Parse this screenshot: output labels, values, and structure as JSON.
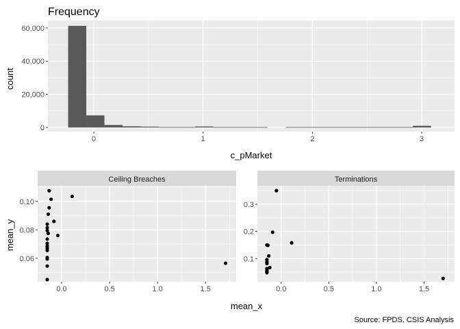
{
  "chart_data": [
    {
      "type": "bar",
      "title": "Frequency",
      "xlabel": "c_pMarket",
      "ylabel": "count",
      "xlim": [
        -0.42,
        3.3
      ],
      "ylim": [
        -2500,
        64500
      ],
      "x_ticks": [
        {
          "value": 0,
          "label": "0"
        },
        {
          "value": 1,
          "label": "1"
        },
        {
          "value": 2,
          "label": "2"
        },
        {
          "value": 3,
          "label": "3"
        }
      ],
      "y_ticks": [
        {
          "value": 0,
          "label": "0"
        },
        {
          "value": 20000,
          "label": "20,000"
        },
        {
          "value": 40000,
          "label": "40,000"
        },
        {
          "value": 60000,
          "label": "60,000"
        }
      ],
      "bin_width": 0.166,
      "bins": [
        {
          "x0": -0.235,
          "count": 61300
        },
        {
          "x0": -0.069,
          "count": 7300
        },
        {
          "x0": 0.097,
          "count": 1500
        },
        {
          "x0": 0.263,
          "count": 700
        },
        {
          "x0": 0.429,
          "count": 500
        },
        {
          "x0": 0.595,
          "count": 200
        },
        {
          "x0": 0.761,
          "count": 200
        },
        {
          "x0": 0.927,
          "count": 600
        },
        {
          "x0": 1.093,
          "count": 200
        },
        {
          "x0": 1.259,
          "count": 200
        },
        {
          "x0": 1.425,
          "count": 200
        },
        {
          "x0": 1.757,
          "count": 200
        },
        {
          "x0": 1.923,
          "count": 200
        },
        {
          "x0": 2.089,
          "count": 200
        },
        {
          "x0": 2.255,
          "count": 200
        },
        {
          "x0": 2.421,
          "count": 200
        },
        {
          "x0": 2.587,
          "count": 200
        },
        {
          "x0": 2.753,
          "count": 200
        },
        {
          "x0": 2.919,
          "count": 1000
        }
      ],
      "grid": true
    },
    {
      "type": "scatter",
      "panel": "Ceiling Breaches",
      "xlabel": "mean_x",
      "ylabel": "mean_y",
      "xlim": [
        -0.25,
        1.82
      ],
      "ylim": [
        0.0435,
        0.111
      ],
      "x_ticks": [
        {
          "value": 0,
          "label": "0.0"
        },
        {
          "value": 0.5,
          "label": "0.5"
        },
        {
          "value": 1.0,
          "label": "1.0"
        },
        {
          "value": 1.5,
          "label": "1.5"
        }
      ],
      "y_ticks": [
        {
          "value": 0.06,
          "label": "0.06"
        },
        {
          "value": 0.08,
          "label": "0.08"
        },
        {
          "value": 0.1,
          "label": "0.10"
        }
      ],
      "points": [
        {
          "x": -0.13,
          "y": 0.1075
        },
        {
          "x": -0.11,
          "y": 0.1015
        },
        {
          "x": 0.11,
          "y": 0.1035
        },
        {
          "x": -0.13,
          "y": 0.0955
        },
        {
          "x": -0.14,
          "y": 0.091
        },
        {
          "x": -0.08,
          "y": 0.086
        },
        {
          "x": -0.15,
          "y": 0.084
        },
        {
          "x": -0.15,
          "y": 0.0815
        },
        {
          "x": -0.15,
          "y": 0.0795
        },
        {
          "x": -0.14,
          "y": 0.0775
        },
        {
          "x": -0.04,
          "y": 0.076
        },
        {
          "x": -0.15,
          "y": 0.0735
        },
        {
          "x": -0.15,
          "y": 0.0705
        },
        {
          "x": -0.15,
          "y": 0.0685
        },
        {
          "x": -0.15,
          "y": 0.067
        },
        {
          "x": -0.15,
          "y": 0.0655
        },
        {
          "x": -0.15,
          "y": 0.0605
        },
        {
          "x": -0.15,
          "y": 0.0595
        },
        {
          "x": -0.15,
          "y": 0.0545
        },
        {
          "x": 1.71,
          "y": 0.0565
        },
        {
          "x": -0.15,
          "y": 0.045
        }
      ],
      "grid": true
    },
    {
      "type": "scatter",
      "panel": "Terminations",
      "xlabel": "mean_x",
      "ylabel": "mean_y",
      "xlim": [
        -0.25,
        1.82
      ],
      "ylim": [
        0.015,
        0.368
      ],
      "x_ticks": [
        {
          "value": 0,
          "label": "0.0"
        },
        {
          "value": 0.5,
          "label": "0.5"
        },
        {
          "value": 1.0,
          "label": "1.0"
        },
        {
          "value": 1.5,
          "label": "1.5"
        }
      ],
      "y_ticks": [
        {
          "value": 0.1,
          "label": "0.1"
        },
        {
          "value": 0.2,
          "label": "0.2"
        },
        {
          "value": 0.3,
          "label": "0.3"
        }
      ],
      "points": [
        {
          "x": -0.05,
          "y": 0.35
        },
        {
          "x": -0.09,
          "y": 0.197
        },
        {
          "x": 0.11,
          "y": 0.158
        },
        {
          "x": -0.15,
          "y": 0.15
        },
        {
          "x": -0.14,
          "y": 0.149
        },
        {
          "x": -0.13,
          "y": 0.11
        },
        {
          "x": -0.15,
          "y": 0.096
        },
        {
          "x": -0.15,
          "y": 0.088
        },
        {
          "x": -0.15,
          "y": 0.082
        },
        {
          "x": -0.12,
          "y": 0.067
        },
        {
          "x": -0.15,
          "y": 0.063
        },
        {
          "x": -0.15,
          "y": 0.057
        },
        {
          "x": -0.15,
          "y": 0.052
        },
        {
          "x": -0.15,
          "y": 0.048
        },
        {
          "x": 1.7,
          "y": 0.027
        }
      ],
      "grid": true
    }
  ],
  "facet_label": "mean_x",
  "facet_ylabel": "mean_y",
  "caption": "Source: FPDS, CSIS Analysis",
  "colors": {
    "panel_bg": "#EBEBEB",
    "grid": "#FFFFFF",
    "bar": "#595959",
    "point": "#000000",
    "strip_bg": "#D9D9D9"
  }
}
